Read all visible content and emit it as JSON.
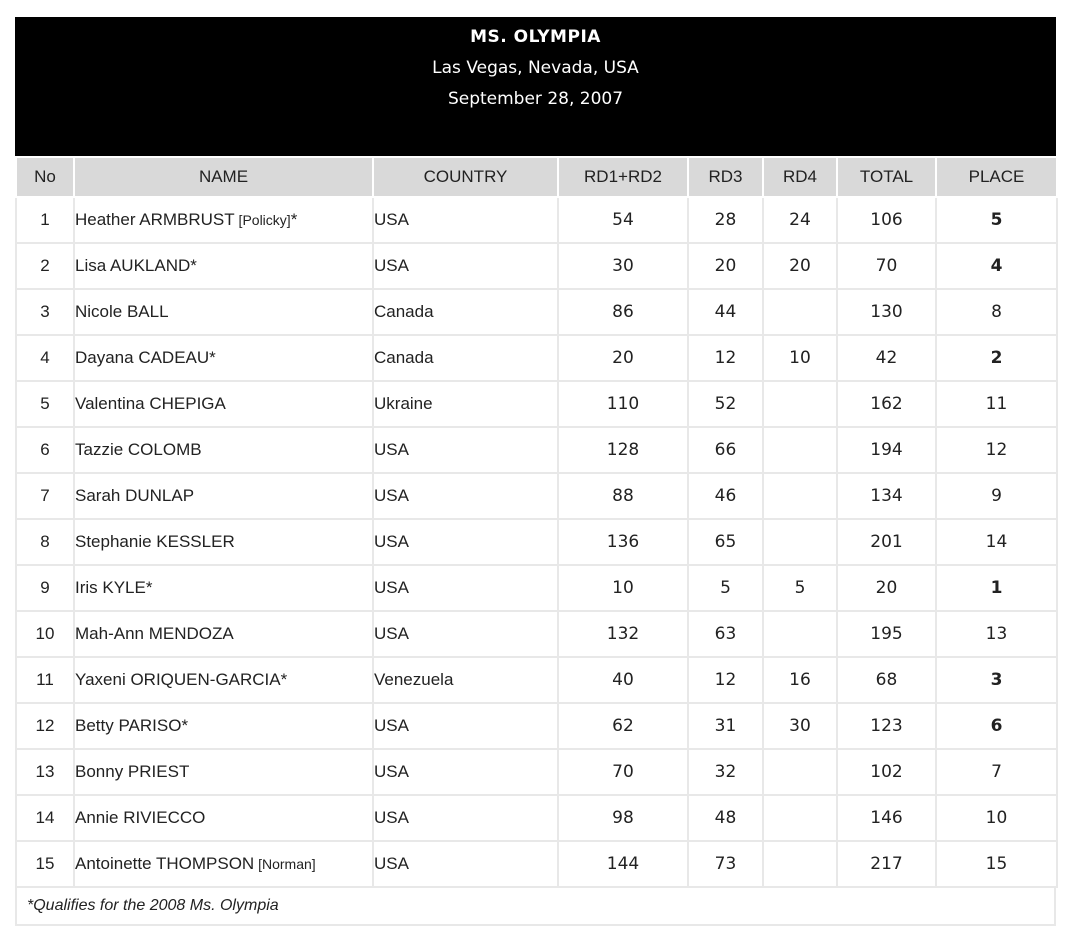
{
  "header": {
    "title": "MS. OLYMPIA",
    "location": "Las Vegas, Nevada, USA",
    "date": "September 28, 2007"
  },
  "columns": [
    "No",
    "NAME",
    "COUNTRY",
    "RD1+RD2",
    "RD3",
    "RD4",
    "TOTAL",
    "PLACE"
  ],
  "rows": [
    {
      "no": "1",
      "name": "Heather ARMBRUST",
      "aff": " [Policky]",
      "mark": "*",
      "country": "USA",
      "rd12": "54",
      "rd3": "28",
      "rd4": "24",
      "total": "106",
      "place": "5",
      "bold": true
    },
    {
      "no": "2",
      "name": "Lisa AUKLAND",
      "aff": "",
      "mark": "*",
      "country": "USA",
      "rd12": "30",
      "rd3": "20",
      "rd4": "20",
      "total": "70",
      "place": "4",
      "bold": true
    },
    {
      "no": "3",
      "name": "Nicole BALL",
      "aff": "",
      "mark": "",
      "country": "Canada",
      "rd12": "86",
      "rd3": "44",
      "rd4": "",
      "total": "130",
      "place": "8",
      "bold": false
    },
    {
      "no": "4",
      "name": "Dayana CADEAU",
      "aff": "",
      "mark": "*",
      "country": "Canada",
      "rd12": "20",
      "rd3": "12",
      "rd4": "10",
      "total": "42",
      "place": "2",
      "bold": true
    },
    {
      "no": "5",
      "name": "Valentina CHEPIGA",
      "aff": "",
      "mark": "",
      "country": "Ukraine",
      "rd12": "110",
      "rd3": "52",
      "rd4": "",
      "total": "162",
      "place": "11",
      "bold": false
    },
    {
      "no": "6",
      "name": "Tazzie COLOMB",
      "aff": "",
      "mark": "",
      "country": "USA",
      "rd12": "128",
      "rd3": "66",
      "rd4": "",
      "total": "194",
      "place": "12",
      "bold": false
    },
    {
      "no": "7",
      "name": "Sarah DUNLAP",
      "aff": "",
      "mark": "",
      "country": "USA",
      "rd12": "88",
      "rd3": "46",
      "rd4": "",
      "total": "134",
      "place": "9",
      "bold": false
    },
    {
      "no": "8",
      "name": "Stephanie KESSLER",
      "aff": "",
      "mark": "",
      "country": "USA",
      "rd12": "136",
      "rd3": "65",
      "rd4": "",
      "total": "201",
      "place": "14",
      "bold": false
    },
    {
      "no": "9",
      "name": "Iris KYLE",
      "aff": "",
      "mark": "*",
      "country": "USA",
      "rd12": "10",
      "rd3": "5",
      "rd4": "5",
      "total": "20",
      "place": "1",
      "bold": true
    },
    {
      "no": "10",
      "name": "Mah-Ann MENDOZA",
      "aff": "",
      "mark": "",
      "country": "USA",
      "rd12": "132",
      "rd3": "63",
      "rd4": "",
      "total": "195",
      "place": "13",
      "bold": false
    },
    {
      "no": "11",
      "name": "Yaxeni ORIQUEN-GARCIA",
      "aff": "",
      "mark": "*",
      "country": "Venezuela",
      "rd12": "40",
      "rd3": "12",
      "rd4": "16",
      "total": "68",
      "place": "3",
      "bold": true
    },
    {
      "no": "12",
      "name": "Betty PARISO",
      "aff": "",
      "mark": "*",
      "country": "USA",
      "rd12": "62",
      "rd3": "31",
      "rd4": "30",
      "total": "123",
      "place": "6",
      "bold": true
    },
    {
      "no": "13",
      "name": "Bonny PRIEST",
      "aff": "",
      "mark": "",
      "country": "USA",
      "rd12": "70",
      "rd3": "32",
      "rd4": "",
      "total": "102",
      "place": "7",
      "bold": false
    },
    {
      "no": "14",
      "name": "Annie RIVIECCO",
      "aff": "",
      "mark": "",
      "country": "USA",
      "rd12": "98",
      "rd3": "48",
      "rd4": "",
      "total": "146",
      "place": "10",
      "bold": false
    },
    {
      "no": "15",
      "name": "Antoinette THOMPSON",
      "aff": " [Norman]",
      "mark": "",
      "country": "USA",
      "rd12": "144",
      "rd3": "73",
      "rd4": "",
      "total": "217",
      "place": "15",
      "bold": false
    }
  ],
  "footnote": "*Qualifies for the 2008 Ms. Olympia"
}
